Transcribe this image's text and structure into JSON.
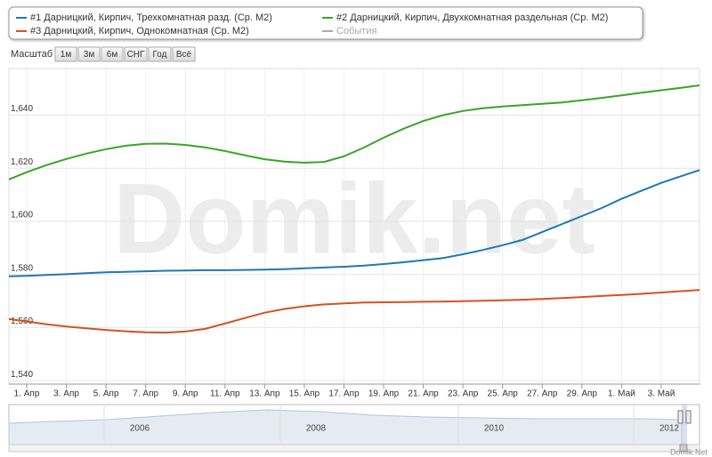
{
  "chart_data": {
    "type": "line",
    "watermark": "Domik.net",
    "credits": "Domik.Net",
    "range_selector": {
      "label": "Масштаб",
      "buttons": [
        "1м",
        "3м",
        "6м",
        "СНГ",
        "Год",
        "Всё"
      ]
    },
    "navigator": {
      "labels": [
        "2006",
        "2008",
        "2010",
        "2012"
      ]
    },
    "categories": [
      null,
      "1. Апр",
      null,
      "3. Апр",
      null,
      "5. Апр",
      null,
      "7. Апр",
      null,
      "9. Апр",
      null,
      "11. Апр",
      null,
      "13. Апр",
      null,
      "15. Апр",
      null,
      "17. Апр",
      null,
      "19. Апр",
      null,
      "21. Апр",
      null,
      "23. Апр",
      null,
      "25. Апр",
      null,
      "27. Апр",
      null,
      "29. Апр",
      null,
      "1. Май",
      null,
      "3. Май",
      null,
      null
    ],
    "series": [
      {
        "name": "#1 Дарницкий, Кирпич, Трехкомнатная разд. (Ср. М2)",
        "color": "#1f78b4",
        "values": [
          1579.3,
          1579.5,
          1579.8,
          1580.1,
          1580.5,
          1580.8,
          1581.0,
          1581.2,
          1581.4,
          1581.5,
          1581.6,
          1581.6,
          1581.7,
          1581.8,
          1582.0,
          1582.3,
          1582.6,
          1582.9,
          1583.3,
          1583.9,
          1584.6,
          1585.4,
          1586.2,
          1587.6,
          1589.2,
          1591.0,
          1593.0,
          1596.0,
          1599.0,
          1602.0,
          1605.0,
          1608.5,
          1611.5,
          1614.5,
          1617.0,
          1619.5
        ]
      },
      {
        "name": "#2 Дарницкий, Кирпич, Двухкомнатная раздельная (Ср. М2)",
        "color": "#3aa427",
        "values": [
          1615.5,
          1618.5,
          1621.2,
          1623.5,
          1625.5,
          1627.2,
          1628.5,
          1629.2,
          1629.3,
          1628.8,
          1627.9,
          1626.5,
          1624.9,
          1623.4,
          1622.5,
          1622.1,
          1622.4,
          1624.5,
          1627.8,
          1631.5,
          1634.9,
          1637.8,
          1640.0,
          1641.6,
          1642.6,
          1643.3,
          1643.8,
          1644.3,
          1644.8,
          1645.6,
          1646.5,
          1647.5,
          1648.5,
          1649.4,
          1650.3,
          1651.3
        ]
      },
      {
        "name": "#3 Дарницкий, Кирпич, Однокомнатная (Ср. М2)",
        "color": "#d9501e",
        "values": [
          1563.3,
          1562.3,
          1561.2,
          1560.4,
          1559.7,
          1559.1,
          1558.6,
          1558.2,
          1558.1,
          1558.5,
          1559.5,
          1561.5,
          1563.6,
          1565.6,
          1567.0,
          1568.0,
          1568.7,
          1569.1,
          1569.4,
          1569.5,
          1569.6,
          1569.7,
          1569.8,
          1569.9,
          1570.1,
          1570.3,
          1570.5,
          1570.8,
          1571.1,
          1571.5,
          1571.9,
          1572.3,
          1572.7,
          1573.2,
          1573.7,
          1574.2
        ]
      },
      {
        "name": "События",
        "color": "#aaaaaa",
        "values": [
          null,
          null,
          null,
          null,
          null,
          null,
          null,
          null,
          null,
          null,
          null,
          null,
          null,
          null,
          null,
          null,
          null,
          null,
          null,
          null,
          null,
          null,
          null,
          null,
          null,
          null,
          null,
          null,
          null,
          null,
          null,
          null,
          null,
          null,
          null,
          null
        ]
      }
    ],
    "ylim": [
      1538.7,
      1657.6
    ],
    "yticks": [
      {
        "value": 1540,
        "label": "1,540"
      },
      {
        "value": 1560,
        "label": "1,560"
      },
      {
        "value": 1580,
        "label": "1,580"
      },
      {
        "value": 1600,
        "label": "1,600"
      },
      {
        "value": 1620,
        "label": "1,620"
      },
      {
        "value": 1640,
        "label": "1,640"
      }
    ],
    "grid": true
  }
}
